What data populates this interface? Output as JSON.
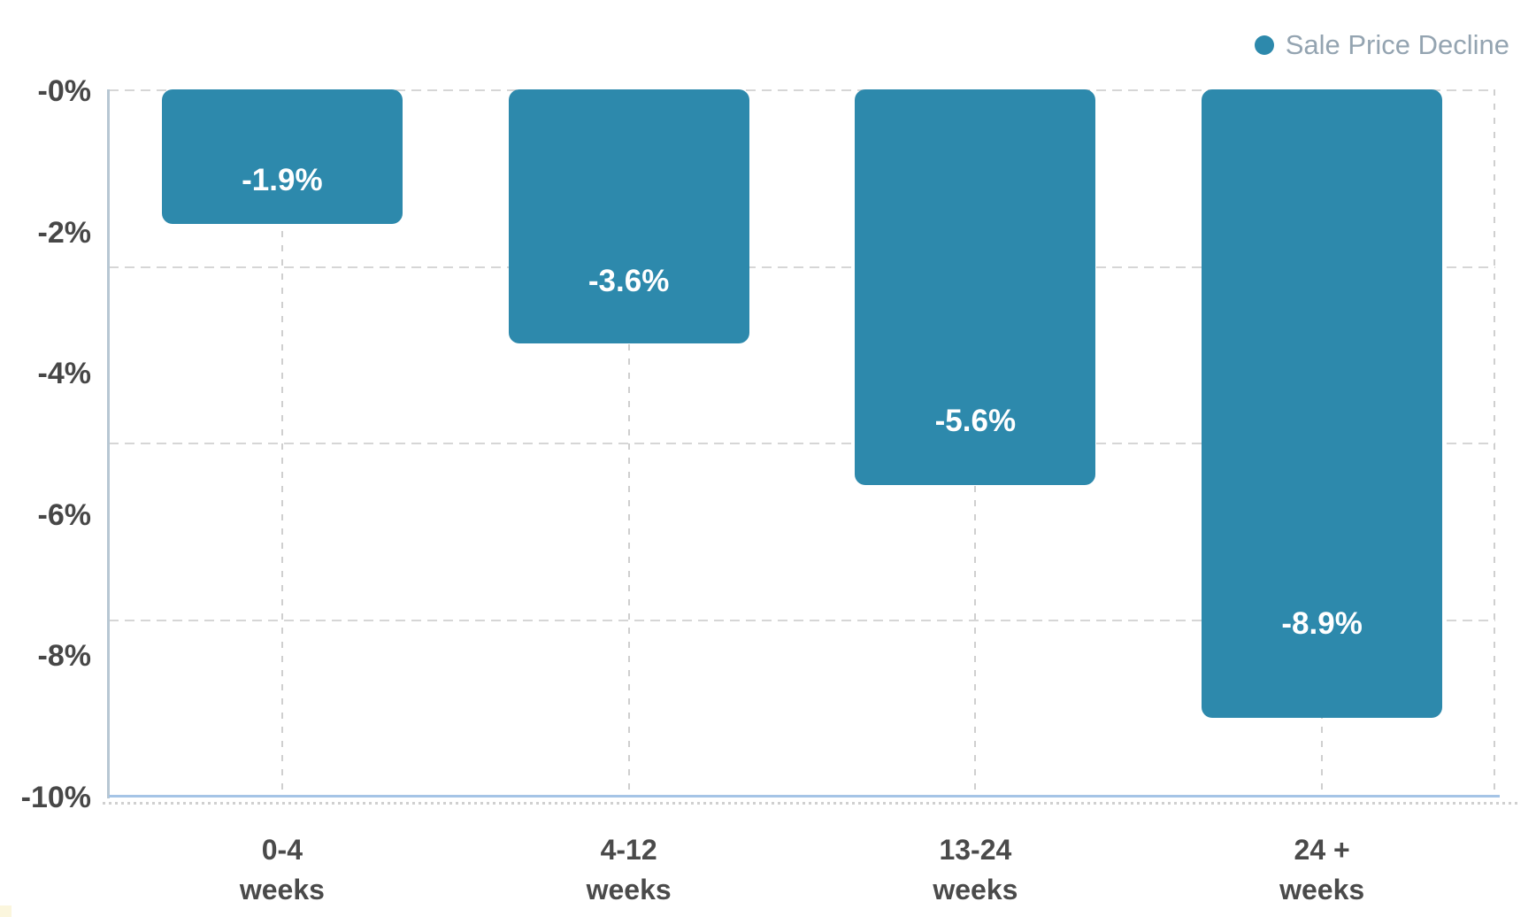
{
  "legend": {
    "label": "Sale Price Decline"
  },
  "chart_data": {
    "type": "bar",
    "title": "",
    "categories": [
      {
        "line1": "0-4",
        "line2": "weeks"
      },
      {
        "line1": "4-12",
        "line2": "weeks"
      },
      {
        "line1": "13-24",
        "line2": "weeks"
      },
      {
        "line1": "24 +",
        "line2": "weeks"
      }
    ],
    "series": [
      {
        "name": "Sale Price Decline",
        "values": [
          -1.9,
          -3.6,
          -5.6,
          -8.9
        ]
      }
    ],
    "value_labels": [
      "-1.9%",
      "-3.6%",
      "-5.6%",
      "-8.9%"
    ],
    "y_ticks": [
      "-0%",
      "-2%",
      "-4%",
      "-6%",
      "-8%",
      "-10%"
    ],
    "ylim": [
      -10,
      0
    ],
    "xlabel": "",
    "ylabel": "",
    "grid": "dashed, horizontal at -2.5/-5/-7.5, vertical at category centers",
    "legend_position": "top-right",
    "colors": {
      "bar": "#2d89ac",
      "value_label": "#ffffff",
      "y_tick_text": "#474747",
      "x_tick_text": "#4a4a4a",
      "legend_text": "#94a4b1",
      "x_axis_line": "#a5c4e6",
      "y_axis_line": "#b7c7d3",
      "gridline": "#d6d6d6"
    }
  }
}
